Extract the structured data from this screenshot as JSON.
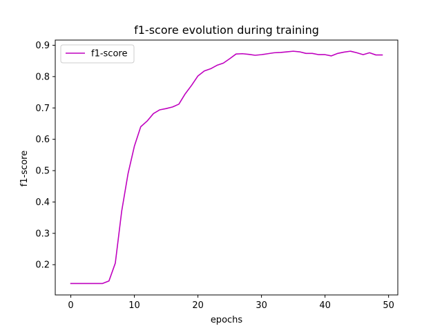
{
  "chart_data": {
    "type": "line",
    "title": "f1-score evolution during training",
    "xlabel": "epochs",
    "ylabel": "f1-score",
    "xlim": [
      -2.45,
      51.45
    ],
    "ylim": [
      0.1035,
      0.9165
    ],
    "xticks": [
      0,
      10,
      20,
      30,
      40,
      50
    ],
    "yticks": [
      0.2,
      0.3,
      0.4,
      0.5,
      0.6,
      0.7,
      0.8,
      0.9
    ],
    "xtick_labels": [
      "0",
      "10",
      "20",
      "30",
      "40",
      "50"
    ],
    "ytick_labels": [
      "0.2",
      "0.3",
      "0.4",
      "0.5",
      "0.6",
      "0.7",
      "0.8",
      "0.9"
    ],
    "grid": false,
    "legend_position": "upper-left",
    "series": [
      {
        "name": "f1-score",
        "color": "#bf00bf",
        "x": [
          0,
          1,
          2,
          3,
          4,
          5,
          6,
          7,
          8,
          9,
          10,
          11,
          12,
          13,
          14,
          15,
          16,
          17,
          18,
          19,
          20,
          21,
          22,
          23,
          24,
          25,
          26,
          27,
          28,
          29,
          30,
          31,
          32,
          33,
          34,
          35,
          36,
          37,
          38,
          39,
          40,
          41,
          42,
          43,
          44,
          45,
          46,
          47,
          48,
          49
        ],
        "y": [
          0.14,
          0.14,
          0.14,
          0.14,
          0.14,
          0.14,
          0.148,
          0.205,
          0.37,
          0.49,
          0.578,
          0.64,
          0.658,
          0.682,
          0.694,
          0.698,
          0.703,
          0.712,
          0.745,
          0.772,
          0.802,
          0.818,
          0.825,
          0.836,
          0.843,
          0.857,
          0.872,
          0.873,
          0.871,
          0.868,
          0.87,
          0.873,
          0.876,
          0.877,
          0.879,
          0.881,
          0.879,
          0.874,
          0.874,
          0.87,
          0.87,
          0.866,
          0.874,
          0.878,
          0.881,
          0.876,
          0.87,
          0.876,
          0.869,
          0.869
        ]
      }
    ]
  }
}
